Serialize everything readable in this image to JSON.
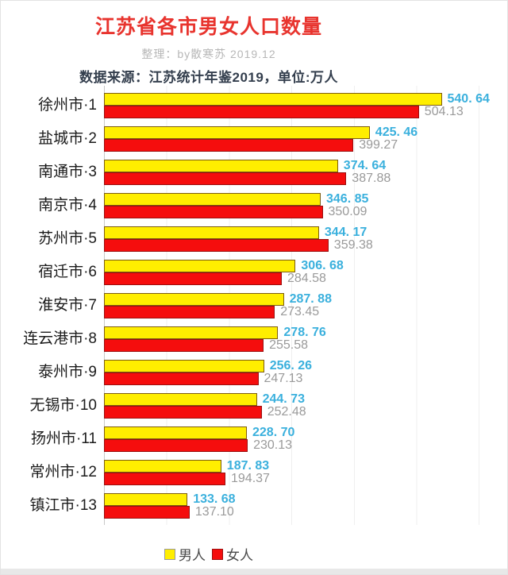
{
  "page": {
    "title": "江苏省各市男女人口数量",
    "subtitle": "整理：by散寒苏 2019.12",
    "source_note": "数据来源：江苏统计年鉴2019，单位:万人"
  },
  "legend": {
    "male_label": "男人",
    "female_label": "女人"
  },
  "colors": {
    "title": "#e8342e",
    "male_bar": "#ffee00",
    "female_bar": "#f50d0d",
    "male_bar_border": "#7d5c10",
    "female_bar_border": "#9b0f0f",
    "male_value": "#3ab0dd",
    "female_value": "#9a9a9a",
    "axis_line": "#c8c8c8",
    "gridline": "#efefef"
  },
  "chart_data": {
    "type": "bar",
    "orientation": "horizontal",
    "title": "江苏省各市男女人口数量",
    "unit": "万人",
    "categories": [
      "徐州市·1",
      "盐城市·2",
      "南通市·3",
      "南京市·4",
      "苏州市·5",
      "宿迁市·6",
      "淮安市·7",
      "连云港市·8",
      "泰州市·9",
      "无锡市·10",
      "扬州市·11",
      "常州市·12",
      "镇江市·13"
    ],
    "series": [
      {
        "name": "男人",
        "values": [
          540.64,
          425.46,
          374.64,
          346.85,
          344.17,
          306.68,
          287.88,
          278.76,
          256.26,
          244.73,
          228.7,
          187.83,
          133.68
        ],
        "labels": [
          "540. 64",
          "425. 46",
          "374. 64",
          "346. 85",
          "344. 17",
          "306. 68",
          "287. 88",
          "278. 76",
          "256. 26",
          "244. 73",
          "228. 70",
          "187. 83",
          "133. 68"
        ]
      },
      {
        "name": "女人",
        "values": [
          504.13,
          399.27,
          387.88,
          350.09,
          359.38,
          284.58,
          273.45,
          255.58,
          247.13,
          252.48,
          230.13,
          194.37,
          137.1
        ],
        "labels": [
          "504.13",
          "399.27",
          "387.88",
          "350.09",
          "359.38",
          "284.58",
          "273.45",
          "255.58",
          "247.13",
          "252.48",
          "230.13",
          "194.37",
          "137.10"
        ]
      }
    ],
    "xlim": [
      0,
      640
    ],
    "gridline_step": 100,
    "grid": true,
    "legend_position": "bottom"
  }
}
